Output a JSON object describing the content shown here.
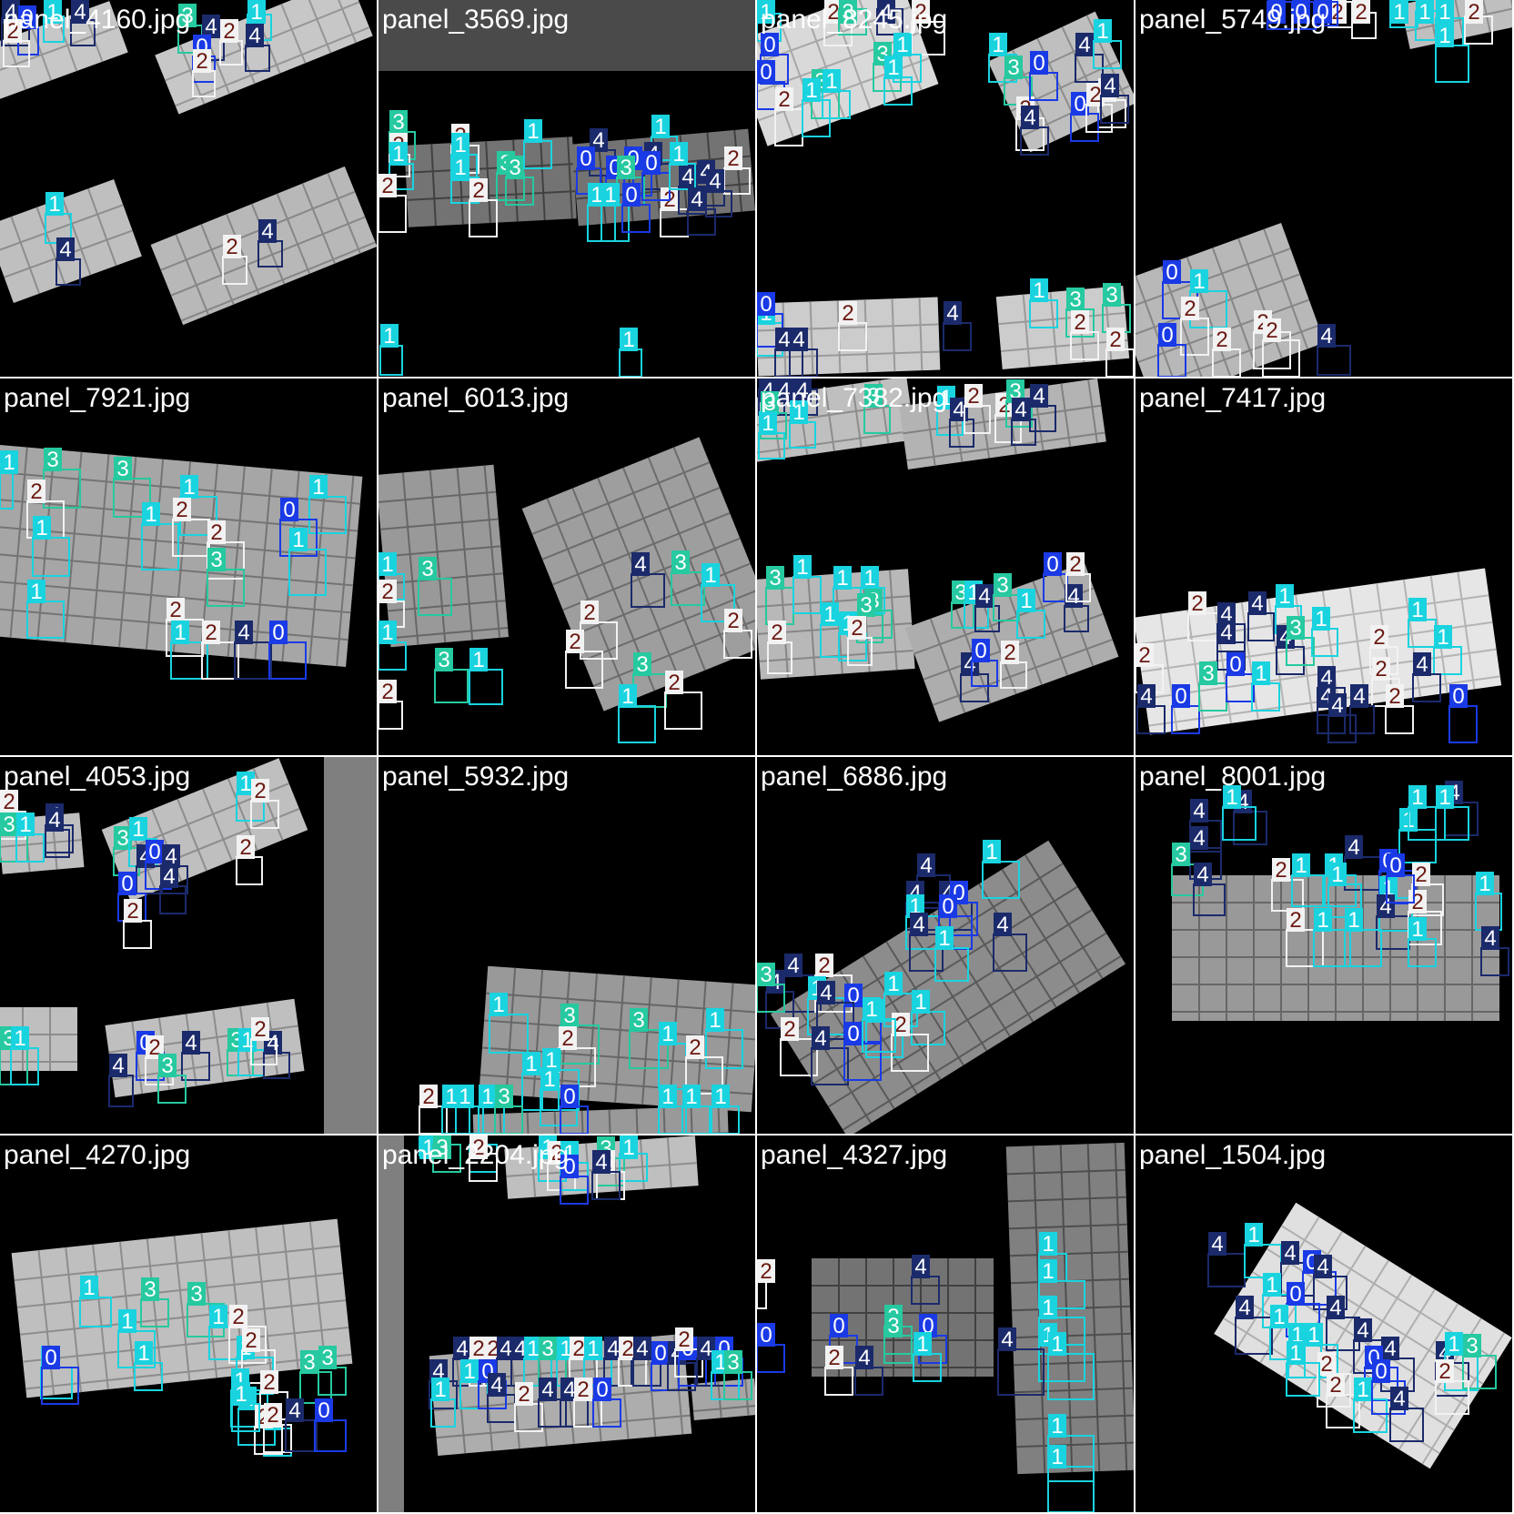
{
  "image_title": "",
  "class_colors": {
    "0": "#1a3ae6",
    "1": "#19d3df",
    "2": "#f2f2f2",
    "3": "#26c9a0",
    "4": "#1b2a6b"
  },
  "label_text_colors": {
    "0": "#ffffff",
    "1": "#ffffff",
    "2": "#6b1a12",
    "3": "#ffffff",
    "4": "#ffffff"
  },
  "tiles": [
    {
      "filename": "panel_4160.jpg",
      "detections": [
        {
          "label": "4"
        },
        {
          "label": "0"
        },
        {
          "label": "2"
        },
        {
          "label": "1"
        },
        {
          "label": "4"
        },
        {
          "label": "3"
        },
        {
          "label": "4"
        },
        {
          "label": "1"
        },
        {
          "label": "2"
        },
        {
          "label": "4"
        },
        {
          "label": "0"
        },
        {
          "label": "2"
        },
        {
          "label": "4"
        },
        {
          "label": "1"
        },
        {
          "label": "2"
        },
        {
          "label": "4"
        }
      ]
    },
    {
      "filename": "panel_3569.jpg",
      "detections": [
        {
          "label": "3"
        },
        {
          "label": "2"
        },
        {
          "label": "1"
        },
        {
          "label": "2"
        },
        {
          "label": "3"
        },
        {
          "label": "1"
        },
        {
          "label": "1"
        },
        {
          "label": "2"
        },
        {
          "label": "3"
        },
        {
          "label": "1"
        },
        {
          "label": "2"
        },
        {
          "label": "4"
        },
        {
          "label": "0"
        },
        {
          "label": "1"
        },
        {
          "label": "0"
        },
        {
          "label": "4"
        },
        {
          "label": "2"
        },
        {
          "label": "4"
        },
        {
          "label": "0"
        },
        {
          "label": "3"
        },
        {
          "label": "0"
        },
        {
          "label": "1"
        },
        {
          "label": "4"
        },
        {
          "label": "1"
        },
        {
          "label": "1"
        },
        {
          "label": "0"
        },
        {
          "label": "2"
        },
        {
          "label": "4"
        },
        {
          "label": "4"
        },
        {
          "label": "2"
        },
        {
          "label": "1"
        },
        {
          "label": "1"
        }
      ]
    },
    {
      "filename": "panel_8245.jpg",
      "detections": [
        {
          "label": "1"
        },
        {
          "label": "0"
        },
        {
          "label": "2"
        },
        {
          "label": "3"
        },
        {
          "label": "4"
        },
        {
          "label": "2"
        },
        {
          "label": "1"
        },
        {
          "label": "3"
        },
        {
          "label": "0"
        },
        {
          "label": "2"
        },
        {
          "label": "3"
        },
        {
          "label": "1"
        },
        {
          "label": "1"
        },
        {
          "label": "1"
        },
        {
          "label": "1"
        },
        {
          "label": "3"
        },
        {
          "label": "2"
        },
        {
          "label": "4"
        },
        {
          "label": "0"
        },
        {
          "label": "4"
        },
        {
          "label": "1"
        },
        {
          "label": "2"
        },
        {
          "label": "0"
        },
        {
          "label": "2"
        },
        {
          "label": "4"
        },
        {
          "label": "1"
        },
        {
          "label": "0"
        },
        {
          "label": "4"
        },
        {
          "label": "4"
        },
        {
          "label": "2"
        },
        {
          "label": "4"
        },
        {
          "label": "1"
        },
        {
          "label": "3"
        },
        {
          "label": "2"
        },
        {
          "label": "3"
        },
        {
          "label": "2"
        }
      ]
    },
    {
      "filename": "panel_5749.jpg",
      "detections": [
        {
          "label": "0"
        },
        {
          "label": "0"
        },
        {
          "label": "2"
        },
        {
          "label": "0"
        },
        {
          "label": "2"
        },
        {
          "label": "1"
        },
        {
          "label": "1"
        },
        {
          "label": "1"
        },
        {
          "label": "2"
        },
        {
          "label": "1"
        },
        {
          "label": "0"
        },
        {
          "label": "1"
        },
        {
          "label": "2"
        },
        {
          "label": "0"
        },
        {
          "label": "2"
        },
        {
          "label": "2"
        },
        {
          "label": "2"
        },
        {
          "label": "4"
        }
      ]
    },
    {
      "filename": "panel_7921.jpg",
      "detections": [
        {
          "label": "1"
        },
        {
          "label": "3"
        },
        {
          "label": "3"
        },
        {
          "label": "2"
        },
        {
          "label": "1"
        },
        {
          "label": "1"
        },
        {
          "label": "1"
        },
        {
          "label": "2"
        },
        {
          "label": "1"
        },
        {
          "label": "0"
        },
        {
          "label": "2"
        },
        {
          "label": "1"
        },
        {
          "label": "3"
        },
        {
          "label": "1"
        },
        {
          "label": "2"
        },
        {
          "label": "1"
        },
        {
          "label": "2"
        },
        {
          "label": "4"
        },
        {
          "label": "0"
        }
      ]
    },
    {
      "filename": "panel_6013.jpg",
      "detections": [
        {
          "label": "1"
        },
        {
          "label": "3"
        },
        {
          "label": "2"
        },
        {
          "label": "1"
        },
        {
          "label": "3"
        },
        {
          "label": "1"
        },
        {
          "label": "2"
        },
        {
          "label": "4"
        },
        {
          "label": "3"
        },
        {
          "label": "1"
        },
        {
          "label": "2"
        },
        {
          "label": "2"
        },
        {
          "label": "3"
        },
        {
          "label": "1"
        },
        {
          "label": "2"
        },
        {
          "label": "2"
        }
      ]
    },
    {
      "filename": "panel_7382.jpg",
      "detections": [
        {
          "label": "4"
        },
        {
          "label": "4"
        },
        {
          "label": "4"
        },
        {
          "label": "3"
        },
        {
          "label": "1"
        },
        {
          "label": "1"
        },
        {
          "label": "3"
        },
        {
          "label": "1"
        },
        {
          "label": "4"
        },
        {
          "label": "2"
        },
        {
          "label": "2"
        },
        {
          "label": "3"
        },
        {
          "label": "4"
        },
        {
          "label": "4"
        },
        {
          "label": "3"
        },
        {
          "label": "1"
        },
        {
          "label": "1"
        },
        {
          "label": "1"
        },
        {
          "label": "3"
        },
        {
          "label": "3"
        },
        {
          "label": "1"
        },
        {
          "label": "2"
        },
        {
          "label": "1"
        },
        {
          "label": "2"
        },
        {
          "label": "3"
        },
        {
          "label": "1"
        },
        {
          "label": "4"
        },
        {
          "label": "3"
        },
        {
          "label": "1"
        },
        {
          "label": "0"
        },
        {
          "label": "4"
        },
        {
          "label": "2"
        },
        {
          "label": "4"
        },
        {
          "label": "0"
        },
        {
          "label": "2"
        }
      ]
    },
    {
      "filename": "panel_7417.jpg",
      "detections": [
        {
          "label": "2"
        },
        {
          "label": "4"
        },
        {
          "label": "4"
        },
        {
          "label": "1"
        },
        {
          "label": "4"
        },
        {
          "label": "4"
        },
        {
          "label": "3"
        },
        {
          "label": "1"
        },
        {
          "label": "2"
        },
        {
          "label": "1"
        },
        {
          "label": "1"
        },
        {
          "label": "2"
        },
        {
          "label": "4"
        },
        {
          "label": "0"
        },
        {
          "label": "3"
        },
        {
          "label": "0"
        },
        {
          "label": "1"
        },
        {
          "label": "4"
        },
        {
          "label": "2"
        },
        {
          "label": "4"
        },
        {
          "label": "4"
        },
        {
          "label": "4"
        },
        {
          "label": "4"
        },
        {
          "label": "2"
        },
        {
          "label": "0"
        }
      ]
    },
    {
      "filename": "panel_4053.jpg",
      "detections": [
        {
          "label": "2"
        },
        {
          "label": "4"
        },
        {
          "label": "3"
        },
        {
          "label": "1"
        },
        {
          "label": "4"
        },
        {
          "label": "3"
        },
        {
          "label": "1"
        },
        {
          "label": "4"
        },
        {
          "label": "0"
        },
        {
          "label": "1"
        },
        {
          "label": "2"
        },
        {
          "label": "0"
        },
        {
          "label": "4"
        },
        {
          "label": "2"
        },
        {
          "label": "4"
        },
        {
          "label": "2"
        },
        {
          "label": "3"
        },
        {
          "label": "1"
        },
        {
          "label": "0"
        },
        {
          "label": "2"
        },
        {
          "label": "4"
        },
        {
          "label": "3"
        },
        {
          "label": "1"
        },
        {
          "label": "4"
        },
        {
          "label": "2"
        },
        {
          "label": "3"
        },
        {
          "label": "4"
        }
      ]
    },
    {
      "filename": "panel_5932.jpg",
      "detections": [
        {
          "label": "1"
        },
        {
          "label": "3"
        },
        {
          "label": "3"
        },
        {
          "label": "2"
        },
        {
          "label": "1"
        },
        {
          "label": "1"
        },
        {
          "label": "2"
        },
        {
          "label": "1"
        },
        {
          "label": "1"
        },
        {
          "label": "1"
        },
        {
          "label": "2"
        },
        {
          "label": "0"
        },
        {
          "label": "1"
        },
        {
          "label": "1"
        },
        {
          "label": "3"
        },
        {
          "label": "1"
        },
        {
          "label": "1"
        },
        {
          "label": "1"
        },
        {
          "label": "1"
        }
      ]
    },
    {
      "filename": "panel_6886.jpg",
      "detections": [
        {
          "label": "1"
        },
        {
          "label": "4"
        },
        {
          "label": "4"
        },
        {
          "label": "4"
        },
        {
          "label": "0"
        },
        {
          "label": "1"
        },
        {
          "label": "0"
        },
        {
          "label": "4"
        },
        {
          "label": "4"
        },
        {
          "label": "1"
        },
        {
          "label": "4"
        },
        {
          "label": "2"
        },
        {
          "label": "4"
        },
        {
          "label": "1"
        },
        {
          "label": "1"
        },
        {
          "label": "3"
        },
        {
          "label": "0"
        },
        {
          "label": "4"
        },
        {
          "label": "1"
        },
        {
          "label": "1"
        },
        {
          "label": "2"
        },
        {
          "label": "2"
        },
        {
          "label": "4"
        },
        {
          "label": "0"
        },
        {
          "label": "1"
        }
      ]
    },
    {
      "filename": "panel_8001.jpg",
      "detections": [
        {
          "label": "4"
        },
        {
          "label": "1"
        },
        {
          "label": "4"
        },
        {
          "label": "4"
        },
        {
          "label": "1"
        },
        {
          "label": "4"
        },
        {
          "label": "1"
        },
        {
          "label": "1"
        },
        {
          "label": "3"
        },
        {
          "label": "4"
        },
        {
          "label": "2"
        },
        {
          "label": "1"
        },
        {
          "label": "1"
        },
        {
          "label": "4"
        },
        {
          "label": "0"
        },
        {
          "label": "2"
        },
        {
          "label": "1"
        },
        {
          "label": "1"
        },
        {
          "label": "4"
        },
        {
          "label": "2"
        },
        {
          "label": "1"
        },
        {
          "label": "1"
        },
        {
          "label": "2"
        },
        {
          "label": "1"
        },
        {
          "label": "0"
        },
        {
          "label": "4"
        },
        {
          "label": "1"
        }
      ]
    },
    {
      "filename": "panel_4270.jpg",
      "detections": [
        {
          "label": "1"
        },
        {
          "label": "3"
        },
        {
          "label": "3"
        },
        {
          "label": "1"
        },
        {
          "label": "2"
        },
        {
          "label": "1"
        },
        {
          "label": "1"
        },
        {
          "label": "2"
        },
        {
          "label": "1"
        },
        {
          "label": "0"
        },
        {
          "label": "1"
        },
        {
          "label": "3"
        },
        {
          "label": "1"
        },
        {
          "label": "1"
        },
        {
          "label": "2"
        },
        {
          "label": "3"
        },
        {
          "label": "1"
        },
        {
          "label": "2"
        },
        {
          "label": "1"
        },
        {
          "label": "2"
        },
        {
          "label": "4"
        },
        {
          "label": "0"
        }
      ]
    },
    {
      "filename": "panel_2204.jpg",
      "detections": [
        {
          "label": "1"
        },
        {
          "label": "3"
        },
        {
          "label": "1"
        },
        {
          "label": "2"
        },
        {
          "label": "1"
        },
        {
          "label": "2"
        },
        {
          "label": "1"
        },
        {
          "label": "3"
        },
        {
          "label": "1"
        },
        {
          "label": "2"
        },
        {
          "label": "4"
        },
        {
          "label": "0"
        },
        {
          "label": "4"
        },
        {
          "label": "2"
        },
        {
          "label": "2"
        },
        {
          "label": "4"
        },
        {
          "label": "4"
        },
        {
          "label": "1"
        },
        {
          "label": "3"
        },
        {
          "label": "1"
        },
        {
          "label": "2"
        },
        {
          "label": "1"
        },
        {
          "label": "4"
        },
        {
          "label": "2"
        },
        {
          "label": "4"
        },
        {
          "label": "0"
        },
        {
          "label": "4"
        },
        {
          "label": "0"
        },
        {
          "label": "3"
        },
        {
          "label": "0"
        },
        {
          "label": "4"
        },
        {
          "label": "1"
        },
        {
          "label": "1"
        },
        {
          "label": "0"
        },
        {
          "label": "4"
        },
        {
          "label": "2"
        },
        {
          "label": "4"
        },
        {
          "label": "4"
        },
        {
          "label": "2"
        },
        {
          "label": "0"
        },
        {
          "label": "2"
        },
        {
          "label": "4"
        },
        {
          "label": "1"
        },
        {
          "label": "3"
        }
      ]
    },
    {
      "filename": "panel_4327.jpg",
      "detections": [
        {
          "label": "2"
        },
        {
          "label": "4"
        },
        {
          "label": "1"
        },
        {
          "label": "1"
        },
        {
          "label": "1"
        },
        {
          "label": "1"
        },
        {
          "label": "3"
        },
        {
          "label": "0"
        },
        {
          "label": "3"
        },
        {
          "label": "0"
        },
        {
          "label": "0"
        },
        {
          "label": "2"
        },
        {
          "label": "4"
        },
        {
          "label": "1"
        },
        {
          "label": "4"
        },
        {
          "label": "1"
        },
        {
          "label": "1"
        },
        {
          "label": "1"
        }
      ]
    },
    {
      "filename": "panel_1504.jpg",
      "detections": [
        {
          "label": "4"
        },
        {
          "label": "1"
        },
        {
          "label": "4"
        },
        {
          "label": "0"
        },
        {
          "label": "4"
        },
        {
          "label": "1"
        },
        {
          "label": "4"
        },
        {
          "label": "0"
        },
        {
          "label": "4"
        },
        {
          "label": "1"
        },
        {
          "label": "1"
        },
        {
          "label": "1"
        },
        {
          "label": "4"
        },
        {
          "label": "4"
        },
        {
          "label": "2"
        },
        {
          "label": "4"
        },
        {
          "label": "1"
        },
        {
          "label": "1"
        },
        {
          "label": "0"
        },
        {
          "label": "3"
        },
        {
          "label": "2"
        },
        {
          "label": "1"
        },
        {
          "label": "0"
        },
        {
          "label": "4"
        },
        {
          "label": "2"
        }
      ]
    }
  ]
}
